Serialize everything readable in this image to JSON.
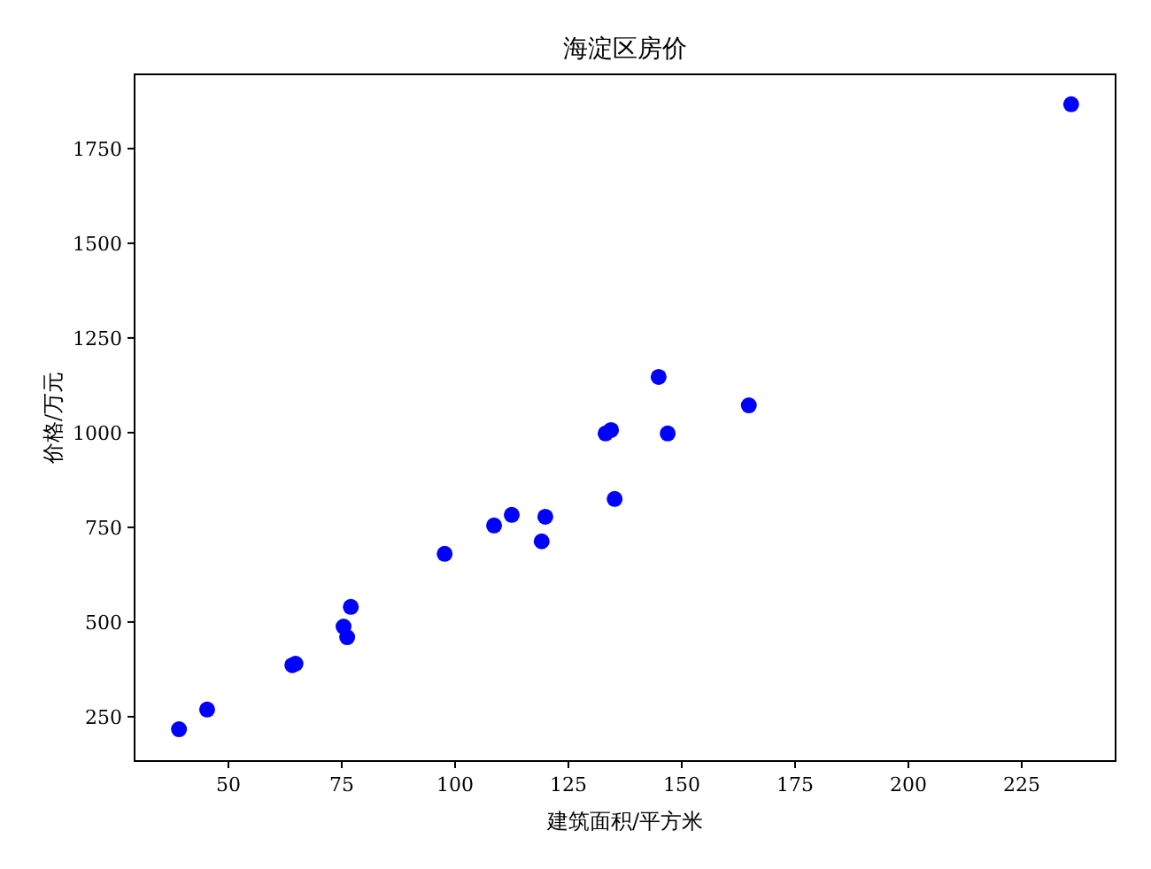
{
  "chart_data": {
    "type": "scatter",
    "title": "海淀区房价",
    "xlabel": "建筑面积/平方米",
    "ylabel": "价格/万元",
    "marker": "circle",
    "grid": false,
    "xlim": [
      29.3,
      245.7
    ],
    "ylim": [
      133,
      1946
    ],
    "xticks": [
      50,
      75,
      100,
      125,
      150,
      175,
      200,
      225
    ],
    "yticks": [
      250,
      500,
      750,
      1000,
      1250,
      1500,
      1750
    ],
    "series": [
      {
        "color": "#0000ff",
        "x": [
          39.1,
          45.3,
          64.1,
          64.8,
          75.4,
          76.2,
          77.0,
          97.7,
          108.6,
          112.5,
          119.1,
          119.9,
          133.2,
          134.4,
          135.2,
          144.9,
          146.9,
          164.8,
          235.9
        ],
        "values": [
          217,
          269,
          386,
          390,
          488,
          460,
          540,
          680,
          755,
          783,
          713,
          778,
          998,
          1007,
          825,
          1147,
          998,
          1072,
          1867
        ]
      }
    ]
  }
}
